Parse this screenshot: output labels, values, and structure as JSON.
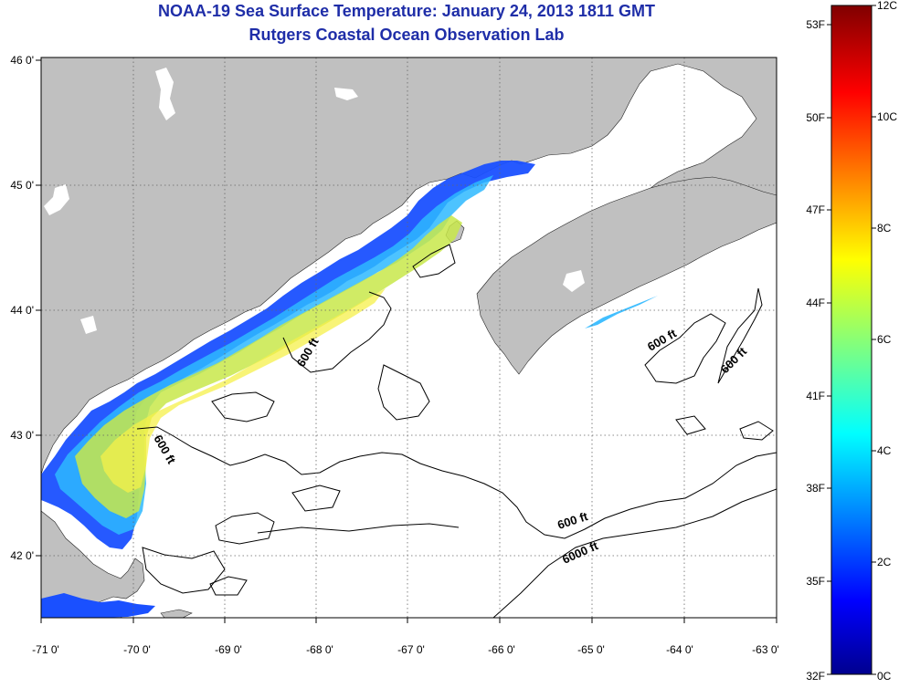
{
  "header": {
    "title": "NOAA-19 Sea Surface Temperature:  January 24, 2013 1811 GMT",
    "subtitle": "Rutgers Coastal Ocean Observation Lab"
  },
  "map": {
    "lon_range": [
      -71.1,
      -63.0
    ],
    "lat_range": [
      41.5,
      46.0
    ],
    "lon_ticks": [
      "-71 0'",
      "-70 0'",
      "-69 0'",
      "-68 0'",
      "-67 0'",
      "-66 0'",
      "-65 0'",
      "-64 0'",
      "-63 0'"
    ],
    "lat_ticks": [
      "46 0'",
      "45 0'",
      "44 0'",
      "43 0'",
      "42 0'"
    ],
    "contour_labels": [
      "600 ft",
      "600 ft",
      "600 ft",
      "600 ft",
      "600 ft",
      "6000 ft"
    ],
    "land_color": "#c0c0c0",
    "ocean_color": "#ffffff"
  },
  "colorbar": {
    "celsius_labels": [
      "12C",
      "10C",
      "8C",
      "6C",
      "4C",
      "2C",
      "0C"
    ],
    "fahrenheit_labels": [
      "53F",
      "50F",
      "47F",
      "44F",
      "41F",
      "38F",
      "35F",
      "32F"
    ],
    "range_c": [
      0,
      12
    ],
    "colormap": "jet"
  }
}
